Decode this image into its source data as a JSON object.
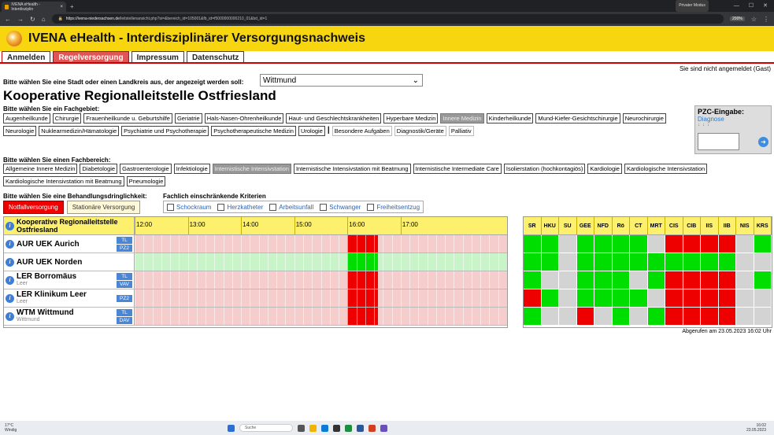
{
  "browser": {
    "tab_title": "IVENA eHealth - Interdisziplin",
    "url_host": "https://ivena-niedersachsen.de",
    "url_path": "/leitstellenansicht.php?si=&bereich_id=105001&fb_id=f5000000000210_01&bd_id=1",
    "zoom": "200%",
    "profile": "Privater Modus"
  },
  "header": {
    "title": "IVENA eHealth - Interdisziplinärer Versorgungsnachweis"
  },
  "menu": [
    "Anmelden",
    "Regelversorgung",
    "Impressum",
    "Datenschutz"
  ],
  "login_status": "Sie sind nicht angemeldet (Gast)",
  "city": {
    "label": "Bitte wählen Sie eine Stadt oder einen Landkreis aus, der angezeigt werden soll:",
    "value": "Wittmund"
  },
  "org_title": "Kooperative Regionalleitstelle Ostfriesland",
  "fachgebiet": {
    "label": "Bitte wählen Sie ein Fachgebiet:",
    "items": [
      "Augenheilkunde",
      "Chirurgie",
      "Frauenheilkunde u. Geburtshilfe",
      "Geriatrie",
      "Hals-Nasen-Ohrenheilkunde",
      "Haut- und Geschlechtskrankheiten",
      "Hyperbare Medizin",
      "Innere Medizin",
      "Kinderheilkunde",
      "Mund-Kiefer-Gesichtschirurgie",
      "Neurochirurgie",
      "Neurologie",
      "Nuklearmedizin/Hämatologie",
      "Psychiatrie und Psychotherapie",
      "Psychotherapeutische Medizin",
      "Urologie",
      "|",
      "Besondere Aufgaben",
      "Diagnostik/Geräte",
      "Palliativ"
    ],
    "selected": "Innere Medizin"
  },
  "fachbereich": {
    "label": "Bitte wählen Sie einen Fachbereich:",
    "items": [
      "Allgemeine Innere Medizin",
      "Diabetologie",
      "Gastroenterologie",
      "Infektiologie",
      "Internistische Intensivstation",
      "Internistische Intensivstation mit Beatmung",
      "Internistische Intermediate Care",
      "Isolierstation (hochkontagiös)",
      "Kardiologie",
      "Kardiologische Intensivstation",
      "Kardiologische Intensivstation mit Beatmung",
      "Pneumologie"
    ],
    "selected": "Internistische Intensivstation"
  },
  "pzc": {
    "title": "PZC-Eingabe:",
    "link": "Diagnose",
    "arrows": "↓↓↓",
    "go": "➜"
  },
  "urgency": {
    "label": "Bitte wählen Sie eine Behandlungsdringlichkeit:",
    "options": [
      "Notfallversorgung",
      "Stationäre Versorgung"
    ]
  },
  "kriterien": {
    "label": "Fachlich einschränkende Kriterien",
    "items": [
      "Schockraum",
      "Herzkatheter",
      "Arbeitsunfall",
      "Schwanger",
      "Freiheitsentzug"
    ]
  },
  "grid": {
    "header_name": "Kooperative Regionalleitstelle Ostfriesland",
    "times": [
      "12:00",
      "13:00",
      "14:00",
      "15:00",
      "16:00",
      "17:00"
    ],
    "info": "i",
    "rows": [
      {
        "name": "AUR UEK Aurich",
        "city": "",
        "tags": [
          "TL",
          "PZ2"
        ],
        "status": "closed",
        "now": "red"
      },
      {
        "name": "AUR UEK Norden",
        "city": "",
        "tags": [],
        "status": "open",
        "now": "green"
      },
      {
        "name": "LER Borromäus",
        "city": "Leer",
        "tags": [
          "TL",
          "VAV"
        ],
        "status": "closed",
        "now": "red"
      },
      {
        "name": "LER Klinikum Leer",
        "city": "Leer",
        "tags": [
          "PZ2"
        ],
        "status": "closed",
        "now": "red"
      },
      {
        "name": "WTM Wittmund",
        "city": "Wittmund",
        "tags": [
          "TL",
          "DAV"
        ],
        "status": "closed",
        "now": "red"
      }
    ]
  },
  "facilities": {
    "columns": [
      "SR",
      "HKU",
      "SU",
      "GEE",
      "NFD",
      "Rö",
      "CT",
      "MRT",
      "CIS",
      "CIB",
      "IIS",
      "IIB",
      "NIS",
      "KRS"
    ],
    "rows": [
      [
        "g",
        "g",
        "n",
        "g",
        "g",
        "g",
        "g",
        "n",
        "r",
        "r",
        "r",
        "r",
        "n",
        "g"
      ],
      [
        "g",
        "g",
        "n",
        "g",
        "g",
        "g",
        "g",
        "g",
        "g",
        "g",
        "g",
        "g",
        "n",
        "n"
      ],
      [
        "g",
        "n",
        "n",
        "g",
        "g",
        "g",
        "n",
        "g",
        "r",
        "r",
        "r",
        "r",
        "n",
        "g"
      ],
      [
        "r",
        "g",
        "n",
        "g",
        "g",
        "g",
        "g",
        "n",
        "r",
        "r",
        "r",
        "r",
        "n",
        "n"
      ],
      [
        "g",
        "n",
        "n",
        "r",
        "n",
        "g",
        "n",
        "g",
        "r",
        "r",
        "r",
        "r",
        "n",
        "n"
      ]
    ]
  },
  "timestamp": "Abgerufen am 23.05.2023 16:02 Uhr",
  "colors": {
    "open": "#c9f4c9",
    "closed": "#f6cdcd",
    "red": "#ee0000",
    "green": "#00dd00",
    "neutral": "#d3d3d3"
  },
  "taskbar": {
    "weather": "17°C",
    "weather2": "Windig",
    "search": "Suche",
    "time": "16:02",
    "date": "23.05.2023"
  }
}
